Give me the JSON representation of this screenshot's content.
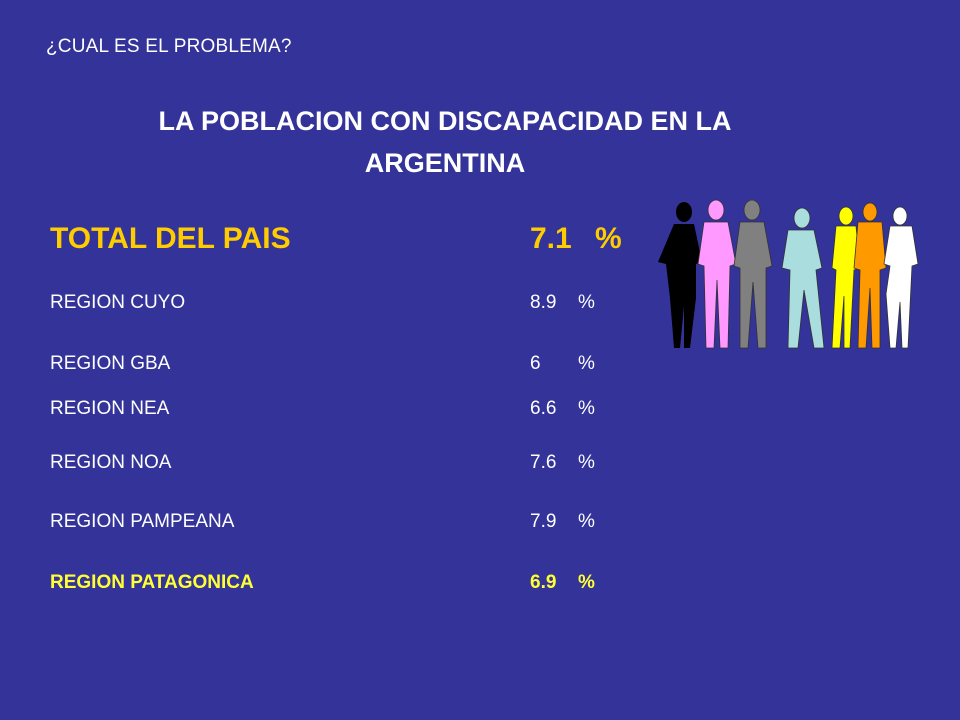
{
  "header": {
    "question": "¿CUAL ES EL PROBLEMA?",
    "title_line1": "LA POBLACION CON DISCAPACIDAD EN LA",
    "title_line2": "ARGENTINA"
  },
  "total": {
    "label": "TOTAL DEL PAIS",
    "value": "7.1",
    "unit": "%"
  },
  "regions": [
    {
      "label": "REGION CUYO",
      "value": "8.9",
      "unit": "%"
    },
    {
      "label": "REGION GBA",
      "value": "6",
      "unit": "%"
    },
    {
      "label": "REGION NEA",
      "value": "6.6",
      "unit": "%"
    },
    {
      "label": "REGION NOA",
      "value": "7.6",
      "unit": "%"
    },
    {
      "label": "REGION PAMPEANA",
      "value": "7.9",
      "unit": "%"
    },
    {
      "label": "REGION PATAGONICA",
      "value": "6.9",
      "unit": "%"
    }
  ],
  "colors": {
    "background": "#333399",
    "text": "#ffffff",
    "total": "#ffcc00",
    "highlight": "#ffff33"
  },
  "illustration": {
    "icon": "people-group-icon",
    "figure_colors": [
      "#000000",
      "#ff99ff",
      "#808080",
      "#aadddd",
      "#ffff00",
      "#ff9900",
      "#ffffff"
    ]
  }
}
